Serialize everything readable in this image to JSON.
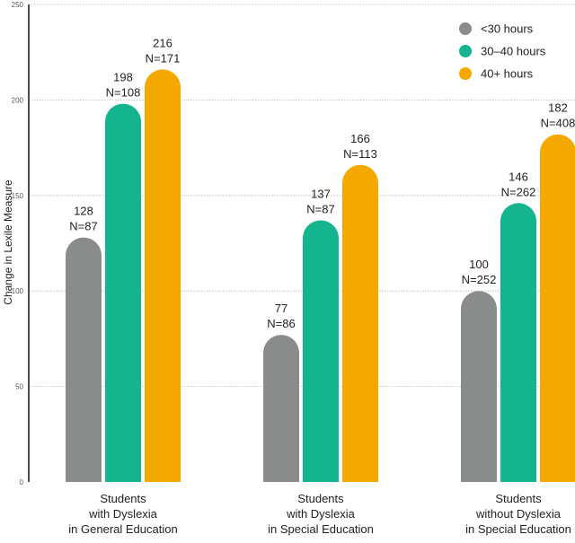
{
  "chart_data": {
    "type": "bar",
    "ylabel": "Change in Lexile Measure",
    "ylim": [
      0,
      250
    ],
    "yticks": [
      0,
      50,
      100,
      150,
      200,
      250
    ],
    "grid": true,
    "legend_position": "top-right",
    "categories": [
      [
        "Students",
        "with Dyslexia",
        "in General Education"
      ],
      [
        "Students",
        "with Dyslexia",
        "in Special Education"
      ],
      [
        "Students",
        "without Dyslexia",
        "in Special Education"
      ]
    ],
    "series": [
      {
        "name": "<30 hours",
        "color": "#8a8c8c",
        "values": [
          128,
          77,
          100
        ],
        "n_labels": [
          "N=87",
          "N=86",
          "N=252"
        ]
      },
      {
        "name": "30–40 hours",
        "color": "#14b58e",
        "values": [
          198,
          137,
          146
        ],
        "n_labels": [
          "N=108",
          "N=87",
          "N=262"
        ]
      },
      {
        "name": "40+ hours",
        "color": "#f5a800",
        "values": [
          216,
          166,
          182
        ],
        "n_labels": [
          "N=171",
          "N=113",
          "N=408"
        ]
      }
    ]
  }
}
